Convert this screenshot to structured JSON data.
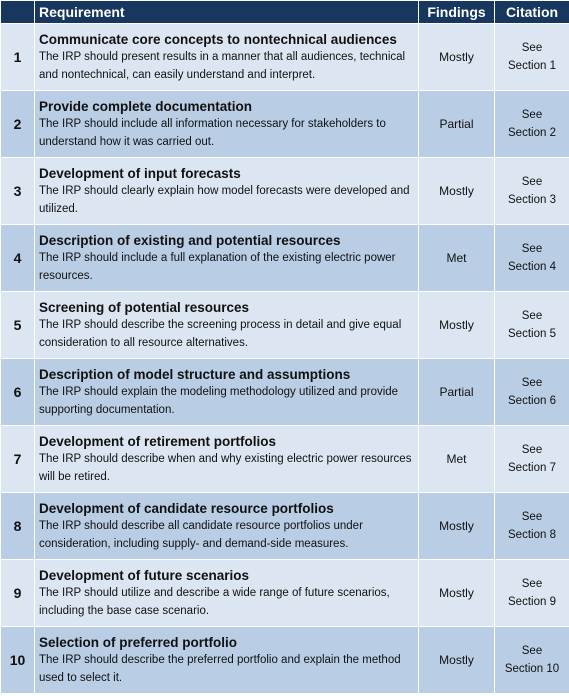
{
  "header": {
    "col_num": "",
    "col_requirement": "Requirement",
    "col_findings": "Findings",
    "col_citation": "Citation"
  },
  "rows": [
    {
      "num": "1",
      "title": "Communicate core concepts to nontechnical audiences",
      "desc": "The IRP should present results in a manner that all audiences, technical and nontechnical, can easily understand and interpret.",
      "finding": "Mostly",
      "cite_1": "See",
      "cite_2": "Section 1"
    },
    {
      "num": "2",
      "title": "Provide complete documentation",
      "desc": "The IRP should include all information necessary for stakeholders to understand how it was carried out.",
      "finding": "Partial",
      "cite_1": "See",
      "cite_2": "Section 2"
    },
    {
      "num": "3",
      "title": "Development of input forecasts",
      "desc": "The IRP should clearly explain how model forecasts were developed and utilized.",
      "finding": "Mostly",
      "cite_1": "See",
      "cite_2": "Section 3"
    },
    {
      "num": "4",
      "title": "Description of existing and potential resources",
      "desc": "The IRP should include a full explanation of the existing electric power resources.",
      "finding": "Met",
      "cite_1": "See",
      "cite_2": "Section 4"
    },
    {
      "num": "5",
      "title": "Screening of potential resources",
      "desc": "The IRP should describe the screening process in detail and give equal consideration to all resource alternatives.",
      "finding": "Mostly",
      "cite_1": "See",
      "cite_2": "Section 5"
    },
    {
      "num": "6",
      "title": "Description of model structure and assumptions",
      "desc": "The IRP should explain the modeling methodology utilized and provide supporting documentation.",
      "finding": "Partial",
      "cite_1": "See",
      "cite_2": "Section 6"
    },
    {
      "num": "7",
      "title": "Development of retirement portfolios",
      "desc": "The IRP should describe when and why existing electric power resources will be retired.",
      "finding": "Met",
      "cite_1": "See",
      "cite_2": "Section 7"
    },
    {
      "num": "8",
      "title": "Development of candidate resource portfolios",
      "desc": "The IRP should describe all candidate resource portfolios under consideration, including supply- and demand-side measures.",
      "finding": "Mostly",
      "cite_1": "See",
      "cite_2": "Section 8"
    },
    {
      "num": "9",
      "title": "Development of future scenarios",
      "desc": "The IRP should utilize and describe a wide range of future scenarios, including the base case scenario.",
      "finding": "Mostly",
      "cite_1": "See",
      "cite_2": "Section 9"
    },
    {
      "num": "10",
      "title": "Selection of preferred portfolio",
      "desc": "The IRP should describe the preferred portfolio and explain the method used to select it.",
      "finding": "Mostly",
      "cite_1": "See",
      "cite_2": "Section 10"
    }
  ]
}
